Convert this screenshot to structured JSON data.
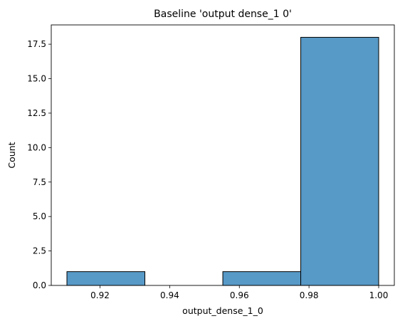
{
  "chart_data": {
    "type": "bar",
    "title": "Baseline 'output dense_1 0'",
    "xlabel": "output_dense_1_0",
    "ylabel": "Count",
    "bins": [
      {
        "x0": 0.9105,
        "x1": 0.93288,
        "count": 1
      },
      {
        "x0": 0.93288,
        "x1": 0.95526,
        "count": 0
      },
      {
        "x0": 0.95526,
        "x1": 0.97763,
        "count": 1
      },
      {
        "x0": 0.97763,
        "x1": 1.0,
        "count": 18
      }
    ],
    "xlim": [
      0.906,
      1.0045
    ],
    "ylim": [
      0,
      18.9
    ],
    "xticks": [
      0.92,
      0.94,
      0.96,
      0.98,
      1.0
    ],
    "xtick_labels": [
      "0.92",
      "0.94",
      "0.96",
      "0.98",
      "1.00"
    ],
    "yticks": [
      0,
      2.5,
      5,
      7.5,
      10,
      12.5,
      15,
      17.5
    ],
    "ytick_labels": [
      "0.0",
      "2.5",
      "5.0",
      "7.5",
      "10.0",
      "12.5",
      "15.0",
      "17.5"
    ],
    "grid": false,
    "bar_color": "#5799c7",
    "edge_color": "#000000"
  }
}
